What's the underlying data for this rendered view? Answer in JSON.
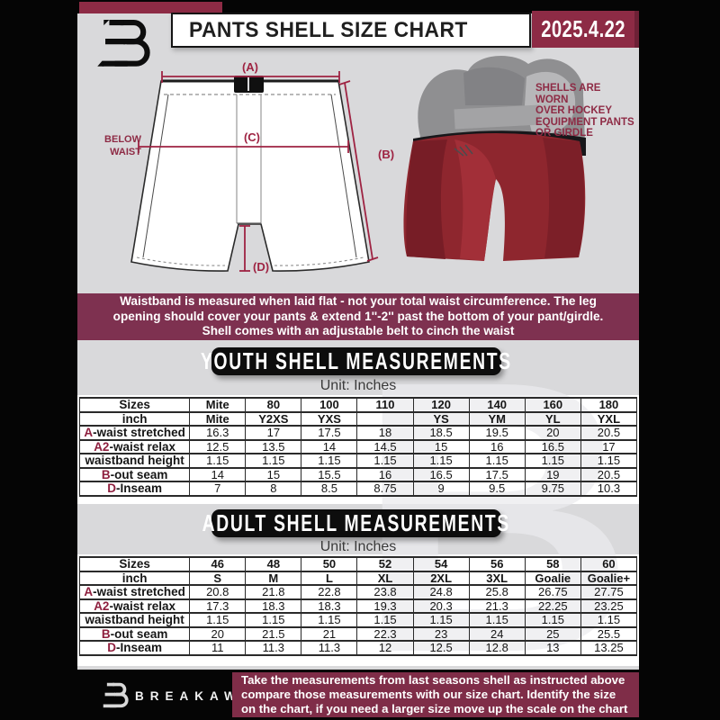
{
  "header": {
    "title": "PANTS SHELL SIZE CHART",
    "date": "2025.4.22"
  },
  "watermark": {
    "glyph": "B"
  },
  "diagram": {
    "label_a": "(A)",
    "label_b": "(B)",
    "label_c": "(C)",
    "label_d": "(D)",
    "waist_note_line1": "7'' BELOW",
    "waist_note_line2": "WAIST",
    "photo_note_line1": "SHELLS ARE WORN",
    "photo_note_line2": "OVER HOCKEY",
    "photo_note_line3": "EQUIPMENT PANTS",
    "photo_note_line4": "OR GIRDLE"
  },
  "info_banner": {
    "lines": [
      "Waistband is measured when laid flat - not your total waist circumference. The leg",
      "opening should cover your pants & extend 1''-2'' past the bottom of your pant/girdle.",
      "Shell comes with an adjustable belt to cinch the waist"
    ]
  },
  "youth": {
    "title": "YOUTH SHELL MEASUREMENTS",
    "unit": "Unit: Inches",
    "rows": [
      {
        "prefix": "",
        "label": "Sizes",
        "bold": true,
        "values": [
          "Mite",
          "80",
          "100",
          "110",
          "120",
          "140",
          "160",
          "180"
        ]
      },
      {
        "prefix": "",
        "label": "inch",
        "bold": true,
        "values": [
          "Mite",
          "Y2XS",
          "YXS",
          "",
          "YS",
          "YM",
          "YL",
          "YXL"
        ]
      },
      {
        "prefix": "A",
        "label": "-waist stretched",
        "bold": false,
        "values": [
          "16.3",
          "17",
          "17.5",
          "18",
          "18.5",
          "19.5",
          "20",
          "20.5"
        ]
      },
      {
        "prefix": "A2",
        "label": "-waist relax",
        "bold": false,
        "values": [
          "12.5",
          "13.5",
          "14",
          "14.5",
          "15",
          "16",
          "16.5",
          "17"
        ]
      },
      {
        "prefix": "",
        "label": "waistband height",
        "bold": false,
        "values": [
          "1.15",
          "1.15",
          "1.15",
          "1.15",
          "1.15",
          "1.15",
          "1.15",
          "1.15"
        ]
      },
      {
        "prefix": "B",
        "label": "-out seam",
        "bold": false,
        "values": [
          "14",
          "15",
          "15.5",
          "16",
          "16.5",
          "17.5",
          "19",
          "20.5"
        ]
      },
      {
        "prefix": "D",
        "label": "-Inseam",
        "bold": false,
        "values": [
          "7",
          "8",
          "8.5",
          "8.75",
          "9",
          "9.5",
          "9.75",
          "10.3"
        ]
      }
    ]
  },
  "adult": {
    "title": "ADULT SHELL MEASUREMENTS",
    "unit": "Unit: Inches",
    "rows": [
      {
        "prefix": "",
        "label": "Sizes",
        "bold": true,
        "values": [
          "46",
          "48",
          "50",
          "52",
          "54",
          "56",
          "58",
          "60"
        ]
      },
      {
        "prefix": "",
        "label": "inch",
        "bold": true,
        "values": [
          "S",
          "M",
          "L",
          "XL",
          "2XL",
          "3XL",
          "Goalie",
          "Goalie+"
        ]
      },
      {
        "prefix": "A",
        "label": "-waist stretched",
        "bold": false,
        "values": [
          "20.8",
          "21.8",
          "22.8",
          "23.8",
          "24.8",
          "25.8",
          "26.75",
          "27.75"
        ]
      },
      {
        "prefix": "A2",
        "label": "-waist relax",
        "bold": false,
        "values": [
          "17.3",
          "18.3",
          "18.3",
          "19.3",
          "20.3",
          "21.3",
          "22.25",
          "23.25"
        ]
      },
      {
        "prefix": "",
        "label": "waistband height",
        "bold": false,
        "values": [
          "1.15",
          "1.15",
          "1.15",
          "1.15",
          "1.15",
          "1.15",
          "1.15",
          "1.15"
        ]
      },
      {
        "prefix": "B",
        "label": "-out seam",
        "bold": false,
        "values": [
          "20",
          "21.5",
          "21",
          "22.3",
          "23",
          "24",
          "25",
          "25.5"
        ]
      },
      {
        "prefix": "D",
        "label": "-Inseam",
        "bold": false,
        "values": [
          "11",
          "11.3",
          "11.3",
          "12",
          "12.5",
          "12.8",
          "13",
          "13.25"
        ]
      }
    ]
  },
  "footer": {
    "brand": "BREAKAWAY",
    "lines": [
      "Take the measurements from last seasons shell as instructed above",
      "compare those measurements  with our size chart. Identify the size",
      "on the chart, if you need a larger size move up the scale on the chart"
    ]
  },
  "colors": {
    "accent_maroon": "#8d2b45",
    "banner_maroon": "#7e3150",
    "footer_maroon": "#7f2d48",
    "measure_line": "#9e2342",
    "page_gray": "#d9d9db",
    "shell_red": "#8e262e",
    "black": "#0d0d0d"
  }
}
